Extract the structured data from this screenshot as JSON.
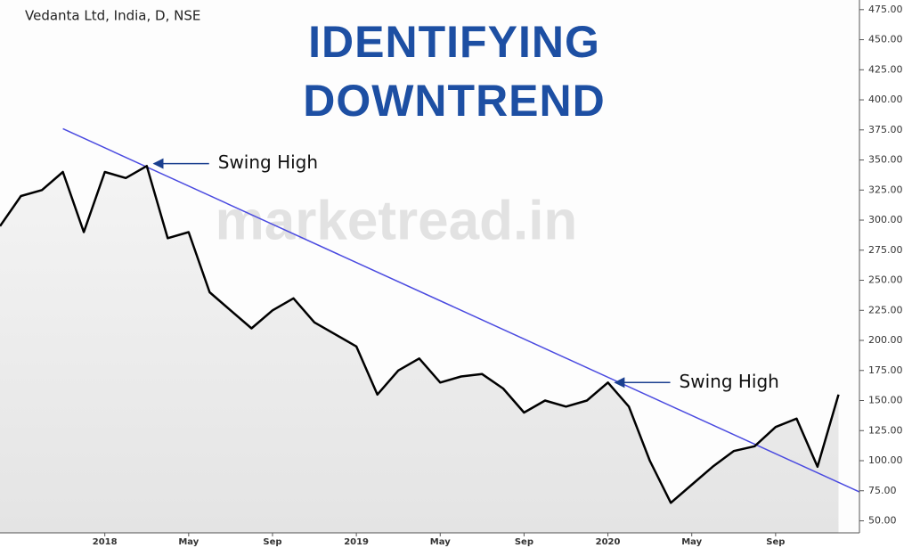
{
  "chart_data": {
    "type": "line",
    "symbol": "Vedanta Ltd, India, D, NSE",
    "title": "IDENTIFYING DOWNTREND",
    "watermark": "marketread.in",
    "x": [
      "2017-08",
      "2017-09",
      "2017-10",
      "2017-11",
      "2017-12",
      "2018-01",
      "2018-02",
      "2018-03",
      "2018-04",
      "2018-05",
      "2018-06",
      "2018-07",
      "2018-08",
      "2018-09",
      "2018-10",
      "2018-11",
      "2018-12",
      "2019-01",
      "2019-02",
      "2019-03",
      "2019-04",
      "2019-05",
      "2019-06",
      "2019-07",
      "2019-08",
      "2019-09",
      "2019-10",
      "2019-11",
      "2019-12",
      "2020-01",
      "2020-02",
      "2020-03",
      "2020-04",
      "2020-05",
      "2020-06",
      "2020-07",
      "2020-08",
      "2020-09",
      "2020-10",
      "2020-11",
      "2020-12"
    ],
    "series": [
      {
        "color": "#000000",
        "values": [
          295,
          320,
          325,
          340,
          290,
          340,
          335,
          345,
          285,
          290,
          240,
          225,
          210,
          225,
          235,
          215,
          205,
          195,
          155,
          175,
          185,
          165,
          170,
          172,
          160,
          140,
          150,
          145,
          150,
          165,
          145,
          100,
          65,
          80,
          95,
          108,
          112,
          128,
          135,
          95,
          155
        ]
      }
    ],
    "trendline": {
      "x": [
        "2017-11",
        "2021-01"
      ],
      "values": [
        376,
        74
      ],
      "color": "#4a4ae0"
    },
    "annotations": [
      {
        "text": "Swing High",
        "x": "2018-03",
        "y": 347
      },
      {
        "text": "Swing High",
        "x": "2020-01",
        "y": 165
      }
    ],
    "xlim": [
      "2017-08",
      "2021-01"
    ],
    "xticks": [
      {
        "value": "2018-01",
        "label": "2018"
      },
      {
        "value": "2018-05",
        "label": "May"
      },
      {
        "value": "2018-09",
        "label": "Sep"
      },
      {
        "value": "2019-01",
        "label": "2019"
      },
      {
        "value": "2019-05",
        "label": "May"
      },
      {
        "value": "2019-09",
        "label": "Sep"
      },
      {
        "value": "2020-01",
        "label": "2020"
      },
      {
        "value": "2020-05",
        "label": "May"
      },
      {
        "value": "2020-09",
        "label": "Sep"
      }
    ],
    "ylim": [
      40,
      483
    ],
    "yticks": [
      {
        "value": 50,
        "label": "50.00"
      },
      {
        "value": 75,
        "label": "75.00"
      },
      {
        "value": 100,
        "label": "100.00"
      },
      {
        "value": 125,
        "label": "125.00"
      },
      {
        "value": 150,
        "label": "150.00"
      },
      {
        "value": 175,
        "label": "175.00"
      },
      {
        "value": 200,
        "label": "200.00"
      },
      {
        "value": 225,
        "label": "225.00"
      },
      {
        "value": 250,
        "label": "250.00"
      },
      {
        "value": 275,
        "label": "275.00"
      },
      {
        "value": 300,
        "label": "300.00"
      },
      {
        "value": 325,
        "label": "325.00"
      },
      {
        "value": 350,
        "label": "350.00"
      },
      {
        "value": 375,
        "label": "375.00"
      },
      {
        "value": 400,
        "label": "400.00"
      },
      {
        "value": 425,
        "label": "425.00"
      },
      {
        "value": 450,
        "label": "450.00"
      },
      {
        "value": 475,
        "label": "475.00"
      }
    ],
    "y_axis_side": "right"
  }
}
